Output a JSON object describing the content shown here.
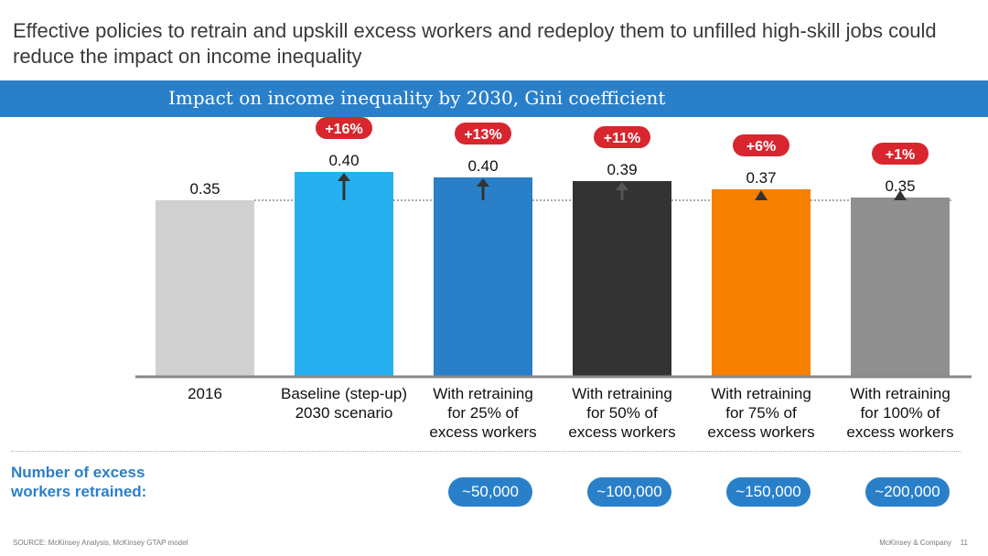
{
  "page": {
    "headline": "Effective policies to retrain and upskill excess workers and redeploy them to unfilled high-skill jobs could reduce the impact on income inequality",
    "banner_title": "Impact on income inequality by 2030, Gini coefficient",
    "retrained_label": "Number of excess workers retrained:",
    "retrained_values": [
      "~50,000",
      "~100,000",
      "~150,000",
      "~200,000"
    ],
    "source": "SOURCE: McKinsey Analysis, McKinsey GTAP model",
    "company": "McKinsey & Company",
    "page_number": "11"
  },
  "colors": {
    "banner": "#2a7fc9",
    "badge": "#d8262e",
    "pill": "#2a7fc9"
  },
  "chart_data": {
    "type": "bar",
    "title": "Impact on income inequality by 2030, Gini coefficient",
    "xlabel": "",
    "ylabel": "",
    "ylim": [
      0,
      0.4
    ],
    "reference_line": 0.35,
    "categories": [
      [
        "2016"
      ],
      [
        "Baseline (step-up)",
        "2030 scenario"
      ],
      [
        "With retraining",
        "for 25% of",
        "excess workers"
      ],
      [
        "With retraining",
        "for 50% of",
        "excess workers"
      ],
      [
        "With retraining",
        "for 75% of",
        "excess workers"
      ],
      [
        "With retraining",
        "for 100% of",
        "excess workers"
      ]
    ],
    "values": [
      0.35,
      0.4,
      0.4,
      0.39,
      0.37,
      0.35
    ],
    "value_labels": [
      "0.35",
      "0.40",
      "0.40",
      "0.39",
      "0.37",
      "0.35"
    ],
    "changes": [
      "",
      "+16%",
      "+13%",
      "+11%",
      "+6%",
      "+1%"
    ],
    "bar_colors": [
      "#d0d0d0",
      "#27b0f0",
      "#2a7fc9",
      "#333333",
      "#f78000",
      "#8f8f8f"
    ],
    "grid": false,
    "legend": "none"
  }
}
